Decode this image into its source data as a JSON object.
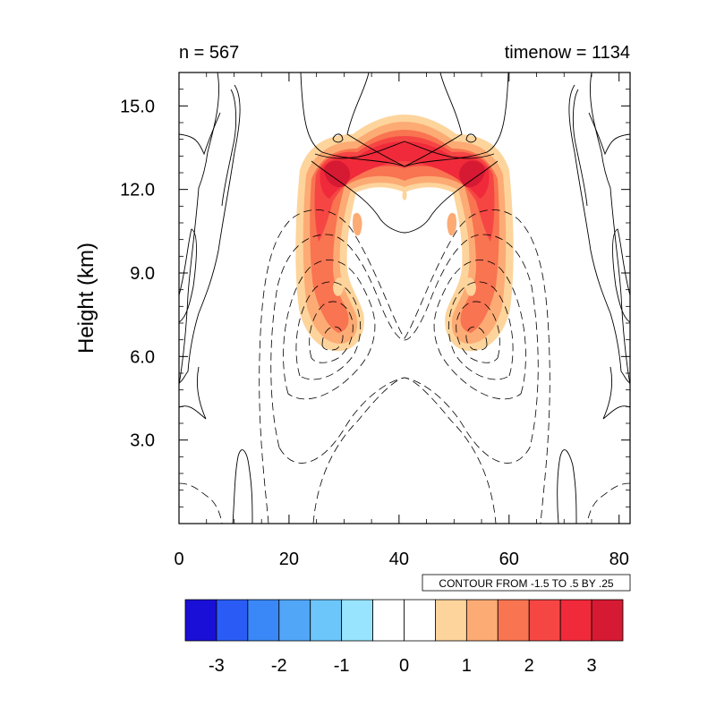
{
  "chart_data": {
    "type": "heatmap",
    "title_left": "n = 567",
    "title_right": "timenow = 1134",
    "xlabel": "",
    "ylabel": "Height (km)",
    "xlim": [
      0,
      82
    ],
    "ylim": [
      0,
      16.2
    ],
    "x_ticks": [
      0,
      20,
      40,
      60,
      80
    ],
    "x_tick_labels": [
      "0",
      "20",
      "40",
      "60",
      "80"
    ],
    "y_ticks": [
      3,
      6,
      9,
      12,
      15
    ],
    "y_tick_labels": [
      "3.0",
      "6.0",
      "9.0",
      "12.0",
      "15.0"
    ],
    "contour_info": "CONTOUR FROM -1.5 TO .5 BY .25",
    "colorbar": {
      "colors": [
        "#1a0fd6",
        "#2a5cf5",
        "#3a88f7",
        "#52a6f8",
        "#6cc6fa",
        "#98e4fe",
        "#ffffff",
        "#ffffff",
        "#fdd49c",
        "#fcab74",
        "#f97451",
        "#f64644",
        "#f02a3a",
        "#d61a33"
      ],
      "tick_labels": [
        "-3",
        "-2",
        "-1",
        "0",
        "1",
        "2",
        "3"
      ],
      "tick_values": [
        -3,
        -2,
        -1,
        0,
        1,
        2,
        3
      ],
      "range": [
        -3.5,
        3.5
      ]
    },
    "grid": false
  }
}
